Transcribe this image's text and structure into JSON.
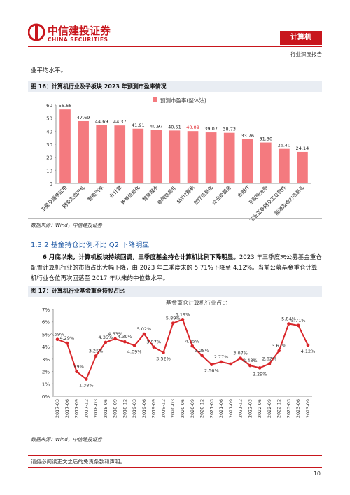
{
  "header": {
    "brand": "中信建投证券",
    "brand_en": "CHINA SECURITIES",
    "sector": "计算机",
    "report_type": "行业深度报告"
  },
  "intro_text": "业平均水平。",
  "figure16": {
    "title": "图 16：计算机行业及子板块 2023 年预测市盈率情况",
    "chart_data": {
      "type": "bar",
      "legend": "预测市盈率(整体法)",
      "color": "#f47a7f",
      "highlight_label_color": "#e0262c",
      "highlight_index": 7,
      "categories": [
        "卫星及遥感应用",
        "网安及国产化",
        "智能汽车",
        "云计算",
        "教育信息化",
        "智慧城市",
        "建筑信息化",
        "SW计算机",
        "医疗信息化",
        "企业级服务",
        "金融IT",
        "互联网金融",
        "工业互联网及工业软件",
        "能源及电力信息化"
      ],
      "values": [
        56.68,
        47.69,
        44.69,
        44.37,
        41.91,
        40.97,
        40.51,
        40.09,
        39.07,
        38.73,
        33.76,
        31.3,
        26.4,
        24.14
      ],
      "value_labels": [
        "56.68",
        "47.69",
        "44.69",
        "44.37",
        "41.91",
        "40.97",
        "40.51",
        "40.09",
        "39.07",
        "38.73",
        "33.76",
        "31.30",
        "26.40",
        "24.14"
      ],
      "ylim": [
        0,
        60
      ],
      "yticks": [
        0,
        10,
        20,
        30,
        40,
        50,
        60
      ]
    },
    "source": "数据来源：Wind，中信建投证券"
  },
  "section": {
    "heading": "1.3.2  基金持仓比例环比 Q2 下降明显",
    "paragraph_bold": "6 月底以来，计算机板块持续回调，三季度基金持仓计算机比例下降明显。",
    "paragraph_rest": "2023 年三季度末公募基金重仓配置计算机行业的市值占比大幅下降，由 2023 年二季度末的 5.71%下降至 4.12%。当前公募基金重仓计算机行业仓位再次回落至 2017 年以来的中位数水平。"
  },
  "figure17": {
    "title": "图 17：计算机行业基金重仓持股占比",
    "chart_data": {
      "type": "line",
      "title": "基金重仓计算机行业占比",
      "color": "#d9262a",
      "x": [
        "2017-03",
        "2017-06",
        "2017-09",
        "2017-12",
        "2018-03",
        "2018-06",
        "2018-09",
        "2018-12",
        "2019-03",
        "2019-06",
        "2019-09",
        "2019-12",
        "2020-03",
        "2020-06",
        "2020-09",
        "2020-12",
        "2021-03",
        "2021-06",
        "2021-09",
        "2021-12",
        "2022-03",
        "2022-06",
        "2022-09",
        "2022-12",
        "2023-03",
        "2023-06",
        "2023-09"
      ],
      "values": [
        4.59,
        4.29,
        1.99,
        1.38,
        3.25,
        4.35,
        4.63,
        4.39,
        4.09,
        5.02,
        3.97,
        3.52,
        5.89,
        6.19,
        4.05,
        3.28,
        2.56,
        2.77,
        2.6,
        3.07,
        2.48,
        2.29,
        2.62,
        3.67,
        5.84,
        5.71,
        4.12
      ],
      "value_labels": [
        "4.59%",
        "4.29%",
        "1.99%",
        "1.38%",
        "3.25%",
        "4.35%",
        "4.63%",
        "4.39%",
        "4.09%",
        "5.02%",
        "3.97%",
        "3.52%",
        "5.89%",
        "6.19%",
        "4.05%",
        "3.28%",
        "2.56%",
        "2.77%",
        null,
        "3.07%",
        "2.48%",
        "2.29%",
        "2.62%",
        "3.67%",
        "5.84%",
        "5.71%",
        "4.12%"
      ],
      "ylim": [
        0,
        7
      ],
      "yticks": [
        {
          "value": 0,
          "label": "0%"
        },
        {
          "value": 1,
          "label": "1%"
        },
        {
          "value": 2,
          "label": "2%"
        },
        {
          "value": 3,
          "label": "3%"
        },
        {
          "value": 4,
          "label": "4%"
        },
        {
          "value": 5,
          "label": "5%"
        },
        {
          "value": 6,
          "label": "6%"
        },
        {
          "value": 7,
          "label": "7%"
        }
      ]
    },
    "source": "数据来源：Wind，中信建投证券"
  },
  "footer": {
    "disclaimer": "请务必阅读正文之后的免责条款和声明。",
    "page": "10"
  }
}
